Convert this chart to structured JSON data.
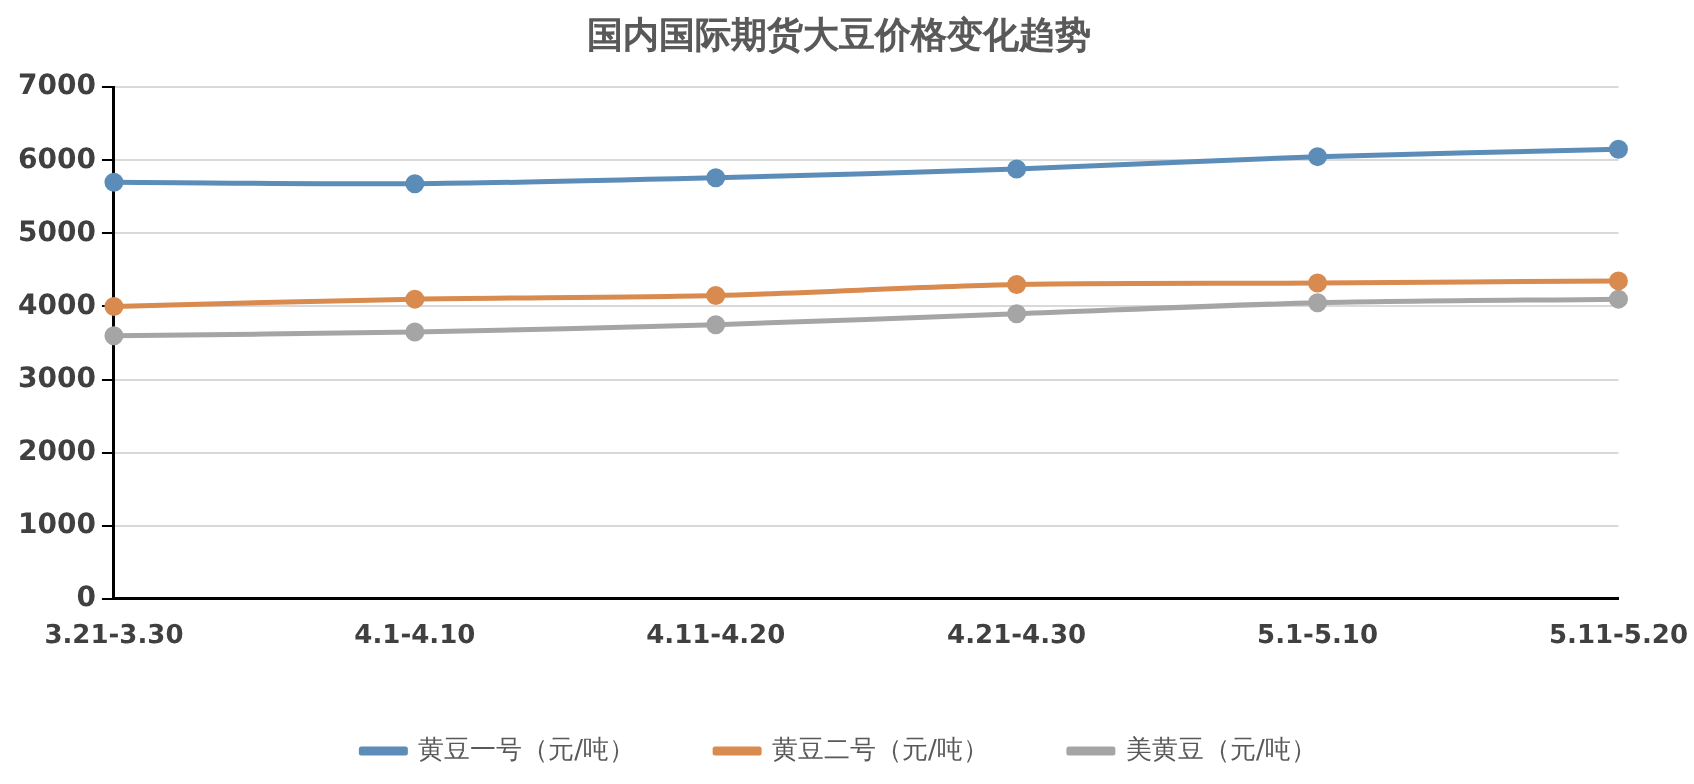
{
  "chart_data": {
    "type": "line",
    "title": "国内国际期货大豆价格变化趋势",
    "categories": [
      "3.21-3.30",
      "4.1-4.10",
      "4.11-4.20",
      "4.21-4.30",
      "5.1-5.10",
      "5.11-5.20"
    ],
    "series": [
      {
        "name": "黄豆一号（元/吨）",
        "color": "#5b8db8",
        "values": [
          5700,
          5680,
          5760,
          5880,
          6050,
          6150
        ]
      },
      {
        "name": "黄豆二号（元/吨）",
        "color": "#d98a4e",
        "values": [
          4000,
          4100,
          4150,
          4300,
          4320,
          4350
        ]
      },
      {
        "name": "美黄豆（元/吨）",
        "color": "#a5a5a5",
        "values": [
          3600,
          3650,
          3750,
          3900,
          4050,
          4100
        ]
      }
    ],
    "ylim": [
      0,
      7000
    ],
    "yticks": [
      0,
      1000,
      2000,
      3000,
      4000,
      5000,
      6000,
      7000
    ],
    "grid": "y",
    "legend": "bottom",
    "marker": "circle",
    "line_style": "solid"
  }
}
